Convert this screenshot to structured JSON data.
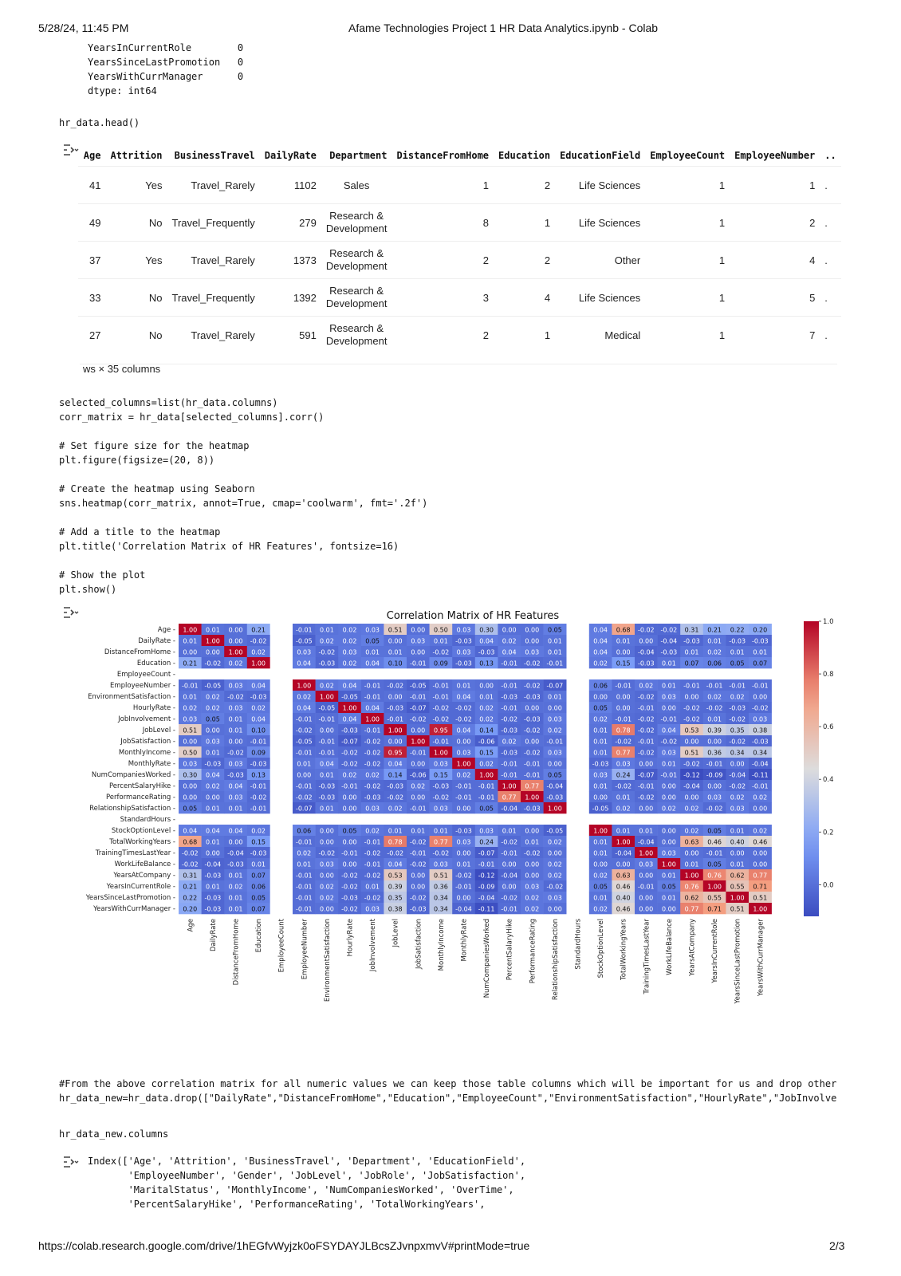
{
  "print_header": {
    "datetime": "5/28/24, 11:45 PM",
    "title": "Afame Technologies Project 1 HR Data Analytics.ipynb - Colab"
  },
  "prev_output": {
    "lines": [
      "YearsInCurrentRole        0",
      "YearsSinceLastPromotion   0",
      "YearsWithCurrManager      0",
      "dtype: int64"
    ]
  },
  "cell_head": {
    "code": "hr_data.head()"
  },
  "df_table": {
    "columns": [
      "Age",
      "Attrition",
      "BusinessTravel",
      "DailyRate",
      "Department",
      "DistanceFromHome",
      "Education",
      "EducationField",
      "EmployeeCount",
      "EmployeeNumber",
      ".."
    ],
    "rows": [
      [
        "41",
        "Yes",
        "Travel_Rarely",
        "1102",
        "Sales",
        "1",
        "2",
        "Life Sciences",
        "1",
        "1",
        "."
      ],
      [
        "49",
        "No",
        "Travel_Frequently",
        "279",
        "Research & Development",
        "8",
        "1",
        "Life Sciences",
        "1",
        "2",
        "."
      ],
      [
        "37",
        "Yes",
        "Travel_Rarely",
        "1373",
        "Research & Development",
        "2",
        "2",
        "Other",
        "1",
        "4",
        "."
      ],
      [
        "33",
        "No",
        "Travel_Frequently",
        "1392",
        "Research & Development",
        "3",
        "4",
        "Life Sciences",
        "1",
        "5",
        "."
      ],
      [
        "27",
        "No",
        "Travel_Rarely",
        "591",
        "Research & Development",
        "2",
        "1",
        "Medical",
        "1",
        "7",
        "."
      ]
    ],
    "shape_note": "ws × 35 columns"
  },
  "cell_heatmap": {
    "code_lines": [
      "selected_columns=list(hr_data.columns)",
      "corr_matrix = hr_data[selected_columns].corr()",
      "",
      "# Set figure size for the heatmap",
      "plt.figure(figsize=(20, 8))",
      "",
      "# Create the heatmap using Seaborn",
      "sns.heatmap(corr_matrix, annot=True, cmap='coolwarm', fmt='.2f')",
      "",
      "# Add a title to the heatmap",
      "plt.title('Correlation Matrix of HR Features', fontsize=16)",
      "",
      "# Show the plot",
      "plt.show()"
    ]
  },
  "chart_data": {
    "type": "heatmap",
    "title": "Correlation Matrix of HR Features",
    "colormap": "coolwarm",
    "labels": [
      "Age",
      "DailyRate",
      "DistanceFromHome",
      "Education",
      "EmployeeCount",
      "EmployeeNumber",
      "EnvironmentSatisfaction",
      "HourlyRate",
      "JobInvolvement",
      "JobLevel",
      "JobSatisfaction",
      "MonthlyIncome",
      "MonthlyRate",
      "NumCompaniesWorked",
      "PercentSalaryHike",
      "PerformanceRating",
      "RelationshipSatisfaction",
      "StandardHours",
      "StockOptionLevel",
      "TotalWorkingYears",
      "TrainingTimesLastYear",
      "WorkLifeBalance",
      "YearsAtCompany",
      "YearsInCurrentRole",
      "YearsSinceLastPromotion",
      "YearsWithCurrManager"
    ],
    "matrix": [
      [
        1.0,
        0.01,
        -0.0,
        0.21,
        null,
        -0.01,
        0.01,
        0.02,
        0.03,
        0.51,
        -0.0,
        0.5,
        0.03,
        0.3,
        0.0,
        0.0,
        0.05,
        null,
        0.04,
        0.68,
        -0.02,
        -0.02,
        0.31,
        0.21,
        0.22,
        0.2
      ],
      [
        0.01,
        1.0,
        -0.0,
        -0.02,
        null,
        -0.05,
        0.02,
        0.02,
        0.05,
        0.0,
        0.03,
        0.01,
        -0.03,
        0.04,
        0.02,
        0.0,
        0.01,
        null,
        0.04,
        0.01,
        0.0,
        -0.04,
        -0.03,
        0.01,
        -0.03,
        -0.03
      ],
      [
        -0.0,
        -0.0,
        1.0,
        0.02,
        null,
        0.03,
        -0.02,
        0.03,
        0.01,
        0.01,
        -0.0,
        -0.02,
        0.03,
        -0.03,
        0.04,
        0.03,
        0.01,
        null,
        0.04,
        0.0,
        -0.04,
        -0.03,
        0.01,
        0.02,
        0.01,
        0.01
      ],
      [
        0.21,
        -0.02,
        0.02,
        1.0,
        null,
        0.04,
        -0.03,
        0.02,
        0.04,
        0.1,
        -0.01,
        0.09,
        -0.03,
        0.13,
        -0.01,
        -0.02,
        -0.01,
        null,
        0.02,
        0.15,
        -0.03,
        0.01,
        0.07,
        0.06,
        0.05,
        0.07
      ],
      [
        null,
        null,
        null,
        null,
        null,
        null,
        null,
        null,
        null,
        null,
        null,
        null,
        null,
        null,
        null,
        null,
        null,
        null,
        null,
        null,
        null,
        null,
        null,
        null,
        null,
        null
      ],
      [
        -0.01,
        -0.05,
        0.03,
        0.04,
        null,
        1.0,
        0.02,
        0.04,
        -0.01,
        -0.02,
        -0.05,
        -0.01,
        0.01,
        -0.0,
        -0.01,
        -0.02,
        -0.07,
        null,
        0.06,
        -0.01,
        0.02,
        0.01,
        -0.01,
        -0.01,
        -0.01,
        -0.01
      ],
      [
        0.01,
        0.02,
        -0.02,
        -0.03,
        null,
        0.02,
        1.0,
        -0.05,
        -0.01,
        0.0,
        -0.01,
        -0.01,
        0.04,
        0.01,
        -0.03,
        -0.03,
        0.01,
        null,
        0.0,
        -0.0,
        -0.02,
        0.03,
        0.0,
        0.02,
        0.02,
        -0.0
      ],
      [
        0.02,
        0.02,
        0.03,
        0.02,
        null,
        0.04,
        -0.05,
        1.0,
        0.04,
        -0.03,
        -0.07,
        -0.02,
        -0.02,
        0.02,
        -0.01,
        -0.0,
        0.0,
        null,
        0.05,
        -0.0,
        -0.01,
        -0.0,
        -0.02,
        -0.02,
        -0.03,
        -0.02
      ],
      [
        0.03,
        0.05,
        0.01,
        0.04,
        null,
        -0.01,
        -0.01,
        0.04,
        1.0,
        -0.01,
        -0.02,
        -0.02,
        -0.02,
        0.02,
        -0.02,
        -0.03,
        0.03,
        null,
        0.02,
        -0.01,
        -0.02,
        -0.01,
        -0.02,
        0.01,
        -0.02,
        0.03
      ],
      [
        0.51,
        0.0,
        0.01,
        0.1,
        null,
        -0.02,
        0.0,
        -0.03,
        -0.01,
        1.0,
        -0.0,
        0.95,
        0.04,
        0.14,
        -0.03,
        -0.02,
        0.02,
        null,
        0.01,
        0.78,
        -0.02,
        0.04,
        0.53,
        0.39,
        0.35,
        0.38
      ],
      [
        -0.0,
        0.03,
        -0.0,
        -0.01,
        null,
        -0.05,
        -0.01,
        -0.07,
        -0.02,
        -0.0,
        1.0,
        -0.01,
        0.0,
        -0.06,
        0.02,
        0.0,
        -0.01,
        null,
        0.01,
        -0.02,
        -0.01,
        -0.02,
        -0.0,
        -0.0,
        -0.02,
        -0.03
      ],
      [
        0.5,
        0.01,
        -0.02,
        0.09,
        null,
        -0.01,
        -0.01,
        -0.02,
        -0.02,
        0.95,
        -0.01,
        1.0,
        0.03,
        0.15,
        -0.03,
        -0.02,
        0.03,
        null,
        0.01,
        0.77,
        -0.02,
        0.03,
        0.51,
        0.36,
        0.34,
        0.34
      ],
      [
        0.03,
        -0.03,
        0.03,
        -0.03,
        null,
        0.01,
        0.04,
        -0.02,
        -0.02,
        0.04,
        0.0,
        0.03,
        1.0,
        0.02,
        -0.01,
        -0.01,
        -0.0,
        null,
        -0.03,
        0.03,
        0.0,
        0.01,
        -0.02,
        -0.01,
        0.0,
        -0.04
      ],
      [
        0.3,
        0.04,
        -0.03,
        0.13,
        null,
        -0.0,
        0.01,
        0.02,
        0.02,
        0.14,
        -0.06,
        0.15,
        0.02,
        1.0,
        -0.01,
        -0.01,
        0.05,
        null,
        0.03,
        0.24,
        -0.07,
        -0.01,
        -0.12,
        -0.09,
        -0.04,
        -0.11
      ],
      [
        0.0,
        0.02,
        0.04,
        -0.01,
        null,
        -0.01,
        -0.03,
        -0.01,
        -0.02,
        -0.03,
        0.02,
        -0.03,
        -0.01,
        -0.01,
        1.0,
        0.77,
        -0.04,
        null,
        0.01,
        -0.02,
        -0.01,
        -0.0,
        -0.04,
        -0.0,
        -0.02,
        -0.01
      ],
      [
        0.0,
        0.0,
        0.03,
        -0.02,
        null,
        -0.02,
        -0.03,
        -0.0,
        -0.03,
        -0.02,
        0.0,
        -0.02,
        -0.01,
        -0.01,
        0.77,
        1.0,
        -0.03,
        null,
        0.0,
        0.01,
        -0.02,
        0.0,
        0.0,
        0.03,
        0.02,
        0.02
      ],
      [
        0.05,
        0.01,
        0.01,
        -0.01,
        null,
        -0.07,
        0.01,
        0.0,
        0.03,
        0.02,
        -0.01,
        0.03,
        -0.0,
        0.05,
        -0.04,
        -0.03,
        1.0,
        null,
        -0.05,
        0.02,
        0.0,
        0.02,
        0.02,
        -0.02,
        0.03,
        -0.0
      ],
      [
        null,
        null,
        null,
        null,
        null,
        null,
        null,
        null,
        null,
        null,
        null,
        null,
        null,
        null,
        null,
        null,
        null,
        null,
        null,
        null,
        null,
        null,
        null,
        null,
        null,
        null
      ],
      [
        0.04,
        0.04,
        0.04,
        0.02,
        null,
        0.06,
        0.0,
        0.05,
        0.02,
        0.01,
        0.01,
        0.01,
        -0.03,
        0.03,
        0.01,
        0.0,
        -0.05,
        null,
        1.0,
        0.01,
        0.01,
        0.0,
        0.02,
        0.05,
        0.01,
        0.02
      ],
      [
        0.68,
        0.01,
        0.0,
        0.15,
        null,
        -0.01,
        -0.0,
        -0.0,
        -0.01,
        0.78,
        -0.02,
        0.77,
        0.03,
        0.24,
        -0.02,
        0.01,
        0.02,
        null,
        0.01,
        1.0,
        -0.04,
        0.0,
        0.63,
        0.46,
        0.4,
        0.46
      ],
      [
        -0.02,
        0.0,
        -0.04,
        -0.03,
        null,
        0.02,
        -0.02,
        -0.01,
        -0.02,
        -0.02,
        -0.01,
        -0.02,
        0.0,
        -0.07,
        -0.01,
        -0.02,
        0.0,
        null,
        0.01,
        -0.04,
        1.0,
        0.03,
        0.0,
        -0.01,
        -0.0,
        -0.0
      ],
      [
        -0.02,
        -0.04,
        -0.03,
        0.01,
        null,
        0.01,
        0.03,
        -0.0,
        -0.01,
        0.04,
        -0.02,
        0.03,
        0.01,
        -0.01,
        -0.0,
        0.0,
        0.02,
        null,
        0.0,
        0.0,
        0.03,
        1.0,
        0.01,
        0.05,
        0.01,
        0.0
      ],
      [
        0.31,
        -0.03,
        0.01,
        0.07,
        null,
        -0.01,
        0.0,
        -0.02,
        -0.02,
        0.53,
        -0.0,
        0.51,
        -0.02,
        -0.12,
        -0.04,
        0.0,
        0.02,
        null,
        0.02,
        0.63,
        0.0,
        0.01,
        1.0,
        0.76,
        0.62,
        0.77
      ],
      [
        0.21,
        0.01,
        0.02,
        0.06,
        null,
        -0.01,
        0.02,
        -0.02,
        0.01,
        0.39,
        -0.0,
        0.36,
        -0.01,
        -0.09,
        -0.0,
        0.03,
        -0.02,
        null,
        0.05,
        0.46,
        -0.01,
        0.05,
        0.76,
        1.0,
        0.55,
        0.71
      ],
      [
        0.22,
        -0.03,
        0.01,
        0.05,
        null,
        -0.01,
        0.02,
        -0.03,
        -0.02,
        0.35,
        -0.02,
        0.34,
        0.0,
        -0.04,
        -0.02,
        0.02,
        0.03,
        null,
        0.01,
        0.4,
        -0.0,
        0.01,
        0.62,
        0.55,
        1.0,
        0.51
      ],
      [
        0.2,
        -0.03,
        0.01,
        0.07,
        null,
        -0.01,
        -0.0,
        -0.02,
        0.03,
        0.38,
        -0.03,
        0.34,
        -0.04,
        -0.11,
        -0.01,
        0.02,
        -0.0,
        null,
        0.02,
        0.46,
        -0.0,
        0.0,
        0.77,
        0.71,
        0.51,
        1.0
      ]
    ],
    "colorbar_ticks": [
      "1.0",
      "0.8",
      "0.6",
      "0.4",
      "0.2",
      "0.0"
    ],
    "colorbar_range": [
      -0.12,
      1.0
    ]
  },
  "cell_drop": {
    "code_lines": [
      "#From the above correlation matrix for all numeric values we can keep those table columns which will be important for us and drop other:",
      "hr_data_new=hr_data.drop([\"DailyRate\",\"DistanceFromHome\",\"Education\",\"EmployeeCount\",\"EnvironmentSatisfaction\",\"HourlyRate\",\"JobInvolver"
    ]
  },
  "cell_columns": {
    "code": "hr_data_new.columns",
    "output_lines": [
      "Index(['Age', 'Attrition', 'BusinessTravel', 'Department', 'EducationField',",
      "       'EmployeeNumber', 'Gender', 'JobLevel', 'JobRole', 'JobSatisfaction',",
      "       'MaritalStatus', 'MonthlyIncome', 'NumCompaniesWorked', 'OverTime',",
      "       'PercentSalaryHike', 'PerformanceRating', 'TotalWorkingYears',"
    ]
  },
  "print_footer": {
    "url": "https://colab.research.google.com/drive/1hEGfvWyjzk0oFSYDAYJLBcsZJvnpxmvV#printMode=true",
    "page": "2/3"
  }
}
